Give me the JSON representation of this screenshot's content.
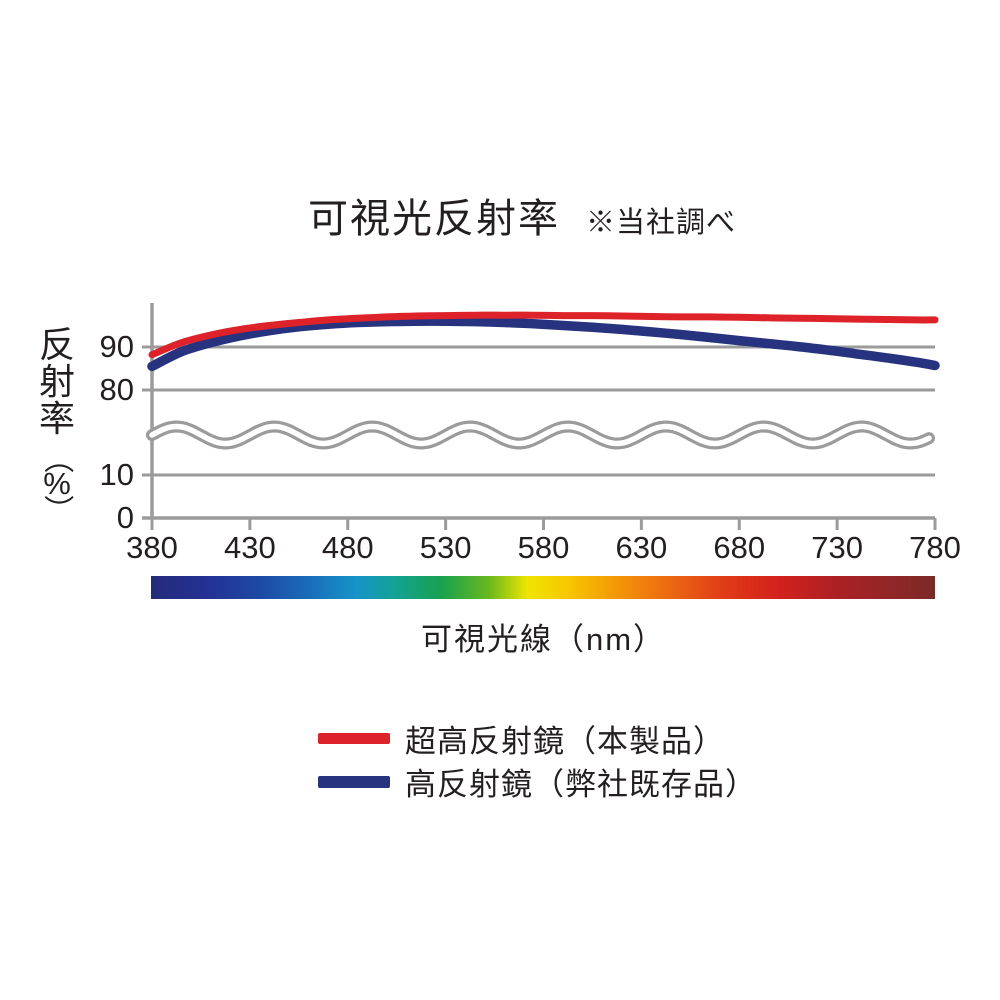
{
  "colors": {
    "red_series": "#dd222a",
    "blue_series": "#28337f",
    "axis": "#9b9b9b",
    "text": "#231f20",
    "background": "#ffffff"
  },
  "chart_data": {
    "type": "line",
    "title": "可視光反射率",
    "title_note": "※当社調べ",
    "xlabel": "可視光線（nm）",
    "ylabel": "反射率",
    "ylabel_unit": "（%）",
    "x_range": [
      380,
      780
    ],
    "x_ticks": [
      380,
      430,
      480,
      530,
      580,
      630,
      680,
      730,
      780
    ],
    "y_ticks": [
      90,
      80,
      10,
      0
    ],
    "y_axis_break": {
      "between": [
        10,
        80
      ],
      "style": "double-wavy-line"
    },
    "grid": true,
    "legend_position": "bottom",
    "series": [
      {
        "id": "ultra-high-reflective-mirror",
        "name": "超高反射鏡（本製品）",
        "color": "#dd222a",
        "points": [
          [
            380,
            88.2
          ],
          [
            395,
            91.0
          ],
          [
            410,
            92.8
          ],
          [
            425,
            94.1
          ],
          [
            440,
            95.0
          ],
          [
            455,
            95.7
          ],
          [
            470,
            96.3
          ],
          [
            485,
            96.7
          ],
          [
            500,
            97.0
          ],
          [
            515,
            97.2
          ],
          [
            530,
            97.3
          ],
          [
            545,
            97.4
          ],
          [
            560,
            97.4
          ],
          [
            575,
            97.4
          ],
          [
            590,
            97.3
          ],
          [
            605,
            97.3
          ],
          [
            620,
            97.2
          ],
          [
            635,
            97.1
          ],
          [
            650,
            97.0
          ],
          [
            665,
            97.0
          ],
          [
            680,
            96.9
          ],
          [
            695,
            96.8
          ],
          [
            710,
            96.7
          ],
          [
            725,
            96.6
          ],
          [
            740,
            96.5
          ],
          [
            755,
            96.4
          ],
          [
            770,
            96.3
          ],
          [
            780,
            96.3
          ]
        ]
      },
      {
        "id": "high-reflective-mirror",
        "name": "高反射鏡（弊社既存品）",
        "color": "#28337f",
        "points": [
          [
            380,
            85.5
          ],
          [
            395,
            88.9
          ],
          [
            410,
            91.0
          ],
          [
            425,
            92.6
          ],
          [
            440,
            93.8
          ],
          [
            455,
            94.7
          ],
          [
            470,
            95.3
          ],
          [
            485,
            95.7
          ],
          [
            500,
            95.9
          ],
          [
            515,
            96.0
          ],
          [
            530,
            96.0
          ],
          [
            545,
            95.9
          ],
          [
            560,
            95.7
          ],
          [
            575,
            95.4
          ],
          [
            590,
            95.0
          ],
          [
            605,
            94.6
          ],
          [
            620,
            94.1
          ],
          [
            635,
            93.5
          ],
          [
            650,
            92.9
          ],
          [
            665,
            92.2
          ],
          [
            680,
            91.5
          ],
          [
            695,
            90.8
          ],
          [
            710,
            90.1
          ],
          [
            725,
            89.3
          ],
          [
            740,
            88.4
          ],
          [
            755,
            87.5
          ],
          [
            770,
            86.5
          ],
          [
            780,
            85.7
          ]
        ]
      }
    ],
    "spectrum_bar": {
      "stops": [
        {
          "pos": 0,
          "color": "#232b7a"
        },
        {
          "pos": 7,
          "color": "#243193"
        },
        {
          "pos": 14,
          "color": "#1d4aa4"
        },
        {
          "pos": 20,
          "color": "#1a6cb8"
        },
        {
          "pos": 26,
          "color": "#1693c8"
        },
        {
          "pos": 31,
          "color": "#13a295"
        },
        {
          "pos": 37,
          "color": "#18a14e"
        },
        {
          "pos": 43,
          "color": "#67b81d"
        },
        {
          "pos": 48,
          "color": "#eee400"
        },
        {
          "pos": 53,
          "color": "#f8c800"
        },
        {
          "pos": 59,
          "color": "#f49a06"
        },
        {
          "pos": 66,
          "color": "#ec6a12"
        },
        {
          "pos": 73,
          "color": "#e03c18"
        },
        {
          "pos": 80,
          "color": "#d3211d"
        },
        {
          "pos": 88,
          "color": "#a92125"
        },
        {
          "pos": 100,
          "color": "#7b2a28"
        }
      ]
    }
  }
}
